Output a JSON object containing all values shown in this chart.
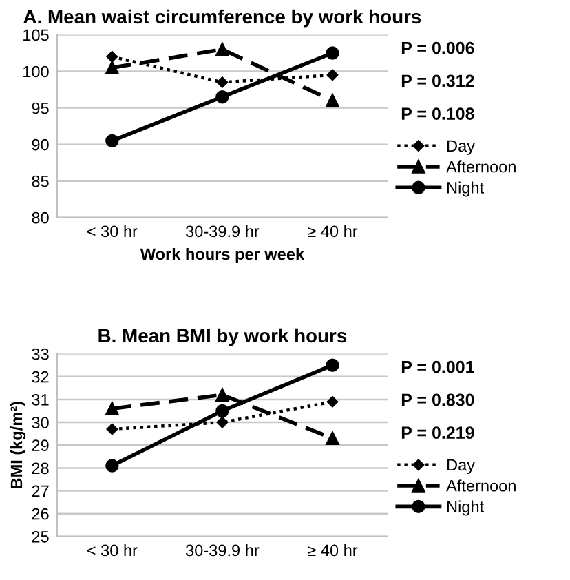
{
  "chart_data": [
    {
      "type": "line",
      "title": "A. Mean waist circumference by work hours",
      "xlabel": "Work hours per week",
      "categories": [
        "< 30 hr",
        "30-39.9 hr",
        "≥ 40 hr"
      ],
      "series": [
        {
          "name": "Day",
          "color": "#000000",
          "marker": "diamond",
          "line_style": "dotted",
          "values": [
            102,
            98.5,
            99.5
          ]
        },
        {
          "name": "Afternoon",
          "color": "#000000",
          "marker": "triangle",
          "line_style": "dashed",
          "values": [
            100.5,
            103,
            96
          ]
        },
        {
          "name": "Night",
          "color": "#000000",
          "marker": "circle",
          "line_style": "solid",
          "values": [
            90.5,
            96.5,
            102.5
          ]
        }
      ],
      "ylim": [
        80,
        105
      ],
      "yticks": [
        80,
        85,
        90,
        95,
        100,
        105
      ],
      "grid": "y",
      "legend": "right",
      "annotations": [
        "P = 0.006",
        "P = 0.312",
        "P = 0.108"
      ]
    },
    {
      "type": "line",
      "title": "B. Mean BMI by work hours",
      "ylabel": "BMI (kg/m²)",
      "categories": [
        "< 30 hr",
        "30-39.9 hr",
        "≥ 40 hr"
      ],
      "series": [
        {
          "name": "Day",
          "color": "#000000",
          "marker": "diamond",
          "line_style": "dotted",
          "values": [
            29.7,
            30.0,
            30.9
          ]
        },
        {
          "name": "Afternoon",
          "color": "#000000",
          "marker": "triangle",
          "line_style": "dashed",
          "values": [
            30.6,
            31.2,
            29.3
          ]
        },
        {
          "name": "Night",
          "color": "#000000",
          "marker": "circle",
          "line_style": "solid",
          "values": [
            28.1,
            30.5,
            32.5
          ]
        }
      ],
      "ylim": [
        25,
        33
      ],
      "yticks": [
        25,
        26,
        27,
        28,
        29,
        30,
        31,
        32,
        33
      ],
      "grid": "y",
      "legend": "right",
      "annotations": [
        "P = 0.001",
        "P = 0.830",
        "P = 0.219"
      ]
    }
  ]
}
